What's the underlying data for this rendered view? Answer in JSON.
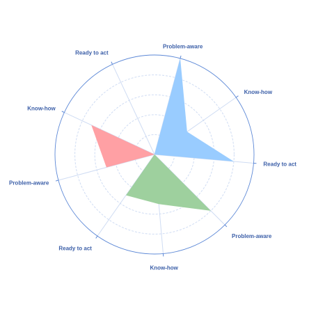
{
  "chart_data": {
    "type": "radar",
    "axes": [
      "Problem-aware",
      "Know-how",
      "Ready to act",
      "Problem-aware",
      "Know-how",
      "Ready to act",
      "Problem-aware",
      "Know-how",
      "Ready to act"
    ],
    "rlim": [
      0,
      10
    ],
    "grid": true,
    "series": [
      {
        "color": "#99ccff",
        "values": [
          10,
          4,
          8,
          0,
          0,
          0,
          0,
          0,
          0
        ]
      },
      {
        "color": "#9ed09e",
        "values": [
          0,
          0,
          0,
          8,
          5,
          5,
          0,
          0,
          0
        ]
      },
      {
        "color": "#ffa0a4",
        "values": [
          0,
          0,
          0,
          0,
          0,
          0,
          5,
          7,
          0
        ]
      }
    ]
  }
}
